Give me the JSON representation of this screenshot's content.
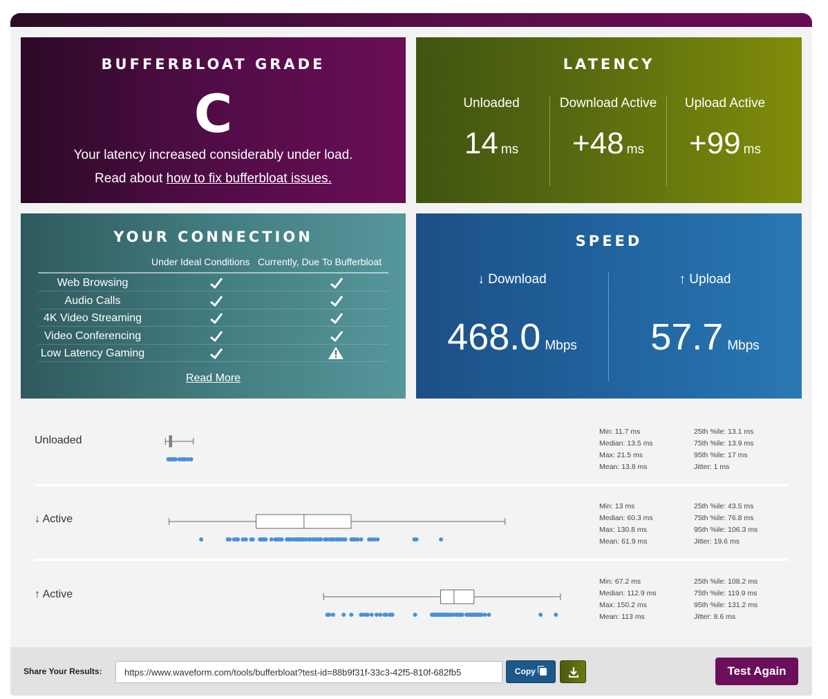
{
  "grade": {
    "title": "BUFFERBLOAT GRADE",
    "letter": "C",
    "message": "Your latency increased considerably under load.",
    "read_prefix": "Read about ",
    "read_link": "how to fix bufferbloat issues."
  },
  "latency": {
    "title": "LATENCY",
    "cols": [
      {
        "label": "Unloaded",
        "value": "14",
        "unit": "ms"
      },
      {
        "label": "Download Active",
        "value": "+48",
        "unit": "ms"
      },
      {
        "label": "Upload Active",
        "value": "+99",
        "unit": "ms"
      }
    ]
  },
  "connection": {
    "title": "YOUR CONNECTION",
    "col_ideal": "Under Ideal Conditions",
    "col_current": "Currently, Due To Bufferbloat",
    "rows": [
      {
        "name": "Web Browsing",
        "ideal": "check",
        "current": "check"
      },
      {
        "name": "Audio Calls",
        "ideal": "check",
        "current": "check"
      },
      {
        "name": "4K Video Streaming",
        "ideal": "check",
        "current": "check"
      },
      {
        "name": "Video Conferencing",
        "ideal": "check",
        "current": "check"
      },
      {
        "name": "Low Latency Gaming",
        "ideal": "check",
        "current": "warning"
      }
    ],
    "read_more": "Read More"
  },
  "speed": {
    "title": "SPEED",
    "download": {
      "label": "↓ Download",
      "value": "468.0",
      "unit": "Mbps"
    },
    "upload": {
      "label": "↑ Upload",
      "value": "57.7",
      "unit": "Mbps"
    }
  },
  "boxplots": [
    {
      "label": "Unloaded",
      "stats": {
        "min": "Min: 11.7 ms",
        "median": "Median: 13.5 ms",
        "max": "Max: 21.5 ms",
        "mean": "Mean: 13.8 ms",
        "p25": "25th %ile: 13.1 ms",
        "p75": "75th %ile: 13.9 ms",
        "p95": "95th %ile: 17 ms",
        "jitter": "Jitter: 1 ms"
      },
      "values": {
        "min": 11.7,
        "q1": 13.1,
        "median": 13.5,
        "q3": 13.9,
        "max": 21.5
      }
    },
    {
      "label": "↓ Active",
      "stats": {
        "min": "Min: 13 ms",
        "median": "Median: 60.3 ms",
        "max": "Max: 130.8 ms",
        "mean": "Mean: 61.9 ms",
        "p25": "25th %ile: 43.5 ms",
        "p75": "75th %ile: 76.8 ms",
        "p95": "95th %ile: 106.3 ms",
        "jitter": "Jitter: 19.6 ms"
      },
      "values": {
        "min": 13,
        "q1": 43.5,
        "median": 60.3,
        "q3": 76.8,
        "max": 130.8
      }
    },
    {
      "label": "↑ Active",
      "stats": {
        "min": "Min: 67.2 ms",
        "median": "Median: 112.9 ms",
        "max": "Max: 150.2 ms",
        "mean": "Mean: 113 ms",
        "p25": "25th %ile: 108.2 ms",
        "p75": "75th %ile: 119.9 ms",
        "p95": "95th %ile: 131.2 ms",
        "jitter": "Jitter: 8.6 ms"
      },
      "values": {
        "min": 67.2,
        "q1": 108.2,
        "median": 112.9,
        "q3": 119.9,
        "max": 150.2
      }
    }
  ],
  "share": {
    "label": "Share Your Results:",
    "url": "https://www.waveform.com/tools/bufferbloat?test-id=88b9f31f-33c3-42f5-810f-682fb5",
    "copy": "Copy",
    "test_again": "Test Again"
  },
  "colors": {
    "grade": "#5a0f4a",
    "latency": "#6b7a0f",
    "connection": "#427c80",
    "speed": "#2165a0",
    "dots": "#4a90d9"
  }
}
